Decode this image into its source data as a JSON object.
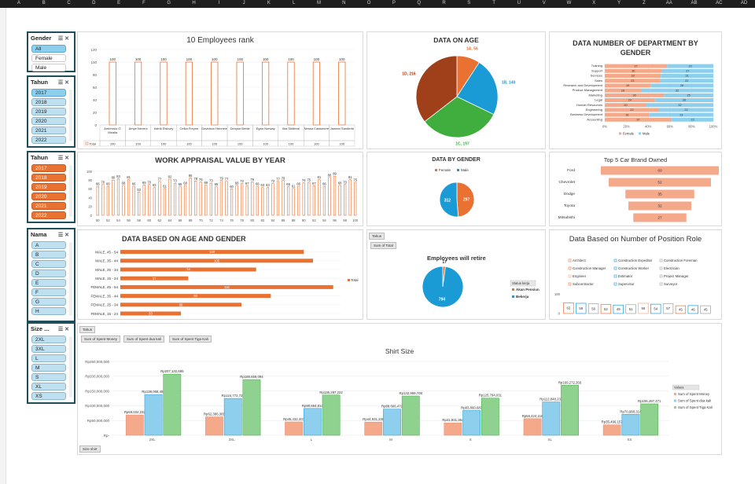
{
  "columns": [
    "A",
    "B",
    "C",
    "D",
    "E",
    "F",
    "G",
    "H",
    "I",
    "J",
    "K",
    "L",
    "M",
    "N",
    "O",
    "P",
    "Q",
    "R",
    "S",
    "T",
    "U",
    "V",
    "W",
    "X",
    "Y",
    "Z",
    "AA",
    "AB",
    "AC",
    "AD"
  ],
  "slicers": {
    "gender": {
      "title": "Gender",
      "items": [
        "All",
        "Female",
        "Male"
      ],
      "selected": [
        0
      ]
    },
    "tahun1": {
      "title": "Tahun",
      "items": [
        "2017",
        "2018",
        "2019",
        "2020",
        "2021",
        "2022"
      ],
      "selected": [
        0
      ]
    },
    "tahun2": {
      "title": "Tahun",
      "items": [
        "2017",
        "2018",
        "2019",
        "2020",
        "2021",
        "2022"
      ]
    },
    "nama": {
      "title": "Nama",
      "items": [
        "A",
        "B",
        "C",
        "D",
        "E",
        "F",
        "G",
        "H"
      ]
    },
    "size": {
      "title": "Size ...",
      "items": [
        "2XL",
        "3XL",
        "L",
        "M",
        "S",
        "XL",
        "XS"
      ]
    }
  },
  "colors": {
    "orange": "#e97132",
    "blue": "#1a9bd6",
    "green": "#3fae3f",
    "brown": "#a0401a",
    "salmon": "#f4a98a",
    "lightblue": "#8ecfee",
    "navy": "#1f4e5a"
  },
  "charts": {
    "rank": {
      "title": "10 Employees rank",
      "type": "bar",
      "categories": [
        "Ambrosio O' Mealla",
        "Amye Nevers",
        "Astrik Elsbury",
        "Celka Freyne",
        "Davidson Hennem",
        "Denyse Bertie",
        "Egan Norway",
        "Ilka Skittreal",
        "Nessa Cawsmere",
        "Janean Sanderbi"
      ],
      "values": [
        100,
        100,
        100,
        100,
        100,
        100,
        100,
        100,
        100,
        100
      ],
      "ylim": [
        0,
        120
      ],
      "yticks": [
        0,
        20,
        40,
        60,
        80,
        100,
        120
      ],
      "legend": "Total",
      "table_row_label": "Total"
    },
    "age": {
      "title": "DATA ON AGE",
      "type": "pie",
      "slices": [
        {
          "label": "1A, 56",
          "value": 56,
          "color": "#e97132"
        },
        {
          "label": "1B, 140",
          "value": 140,
          "color": "#1a9bd6"
        },
        {
          "label": "1C, 197",
          "value": 197,
          "color": "#3fae3f"
        },
        {
          "label": "1D, 216",
          "value": 216,
          "color": "#a0401a"
        }
      ]
    },
    "dept": {
      "title": "DATA NUMBER OF DEPARTMENT BY GENDER",
      "type": "bar",
      "categories": [
        "Training",
        "Support",
        "Services",
        "Sales",
        "Research and Development",
        "Product Management",
        "Marketing",
        "Legal",
        "Human Resources",
        "Engineering",
        "Business Development",
        "Accounting"
      ],
      "series": [
        {
          "name": "Female",
          "values": [
            27,
            30,
            33,
            23,
            19,
            16,
            30,
            24,
            20,
            22,
            16,
            37
          ]
        },
        {
          "name": "Male",
          "values": [
            20,
            27,
            31,
            22,
            26,
            32,
            25,
            28,
            32,
            22,
            23,
            23
          ]
        }
      ],
      "xticks": [
        "0%",
        "20%",
        "40%",
        "60%",
        "80%",
        "100%"
      ]
    },
    "appraisal": {
      "title": "WORK APPRAISAL VALUE BY YEAR",
      "type": "bar",
      "x": [
        50,
        51,
        52,
        53,
        54,
        55,
        56,
        57,
        58,
        59,
        60,
        61,
        62,
        63,
        64,
        65,
        66,
        67,
        68,
        69,
        70,
        71,
        72,
        73,
        74,
        75,
        76,
        77,
        78,
        79,
        80,
        81,
        82,
        83,
        84,
        85,
        86,
        87,
        88,
        89,
        90,
        91,
        92,
        93,
        94,
        95,
        96,
        97,
        98,
        99,
        100
      ],
      "values": [
        66,
        70,
        66,
        80,
        83,
        68,
        81,
        66,
        53,
        69,
        70,
        63,
        77,
        61,
        82,
        73,
        65,
        68,
        85,
        78,
        76,
        69,
        73,
        65,
        79,
        77,
        60,
        68,
        72,
        67,
        76,
        66,
        63,
        63,
        72,
        77,
        79,
        65,
        61,
        66,
        74,
        75,
        67,
        81,
        66,
        86,
        89,
        68,
        70,
        81,
        75
      ],
      "xticks": [
        50,
        52,
        54,
        56,
        58,
        60,
        62,
        64,
        66,
        68,
        70,
        72,
        74,
        76,
        78,
        80,
        82,
        84,
        86,
        88,
        90,
        92,
        94,
        96,
        98,
        100
      ],
      "yticks": [
        0,
        20,
        40,
        60,
        80,
        100
      ],
      "ylim": [
        0,
        100
      ]
    },
    "gender": {
      "title": "DATA BY GENDER",
      "type": "pie",
      "legend": [
        "Female",
        "Male"
      ],
      "slices": [
        {
          "label": "297",
          "value": 297,
          "color": "#e97132"
        },
        {
          "label": "312",
          "value": 312,
          "color": "#1a9bd6"
        }
      ]
    },
    "brand": {
      "title": "Top 5 Car Brand Owned",
      "type": "bar",
      "categories": [
        "Ford",
        "Chevrolet",
        "Dodge",
        "Toyota",
        "Mitsubishi"
      ],
      "values": [
        60,
        52,
        35,
        32,
        27
      ],
      "xlim": [
        0,
        60
      ]
    },
    "agegender": {
      "title": "DATA BASED ON AGE AND GENDER",
      "type": "bar",
      "categories": [
        "MALE, 45 - 54",
        "MALE, 35 - 44",
        "MALE, 25 - 34",
        "MALE, 15 - 24",
        "FEMALE, 45 - 54",
        "FEMALE, 35 - 44",
        "FEMALE, 25 - 34",
        "FEMALE, 15 - 24"
      ],
      "values": [
        100,
        105,
        74,
        37,
        116,
        82,
        66,
        33
      ],
      "xlim": [
        0,
        120
      ],
      "legend": "Total"
    },
    "retire": {
      "title": "Employees will retire",
      "type": "pie",
      "field_button": "Tahun",
      "value_button": "Sum of Total",
      "legend_title": "Status kerja",
      "legend": [
        "Akan Pensiun",
        "Bekerja"
      ],
      "slices": [
        {
          "label": "17",
          "value": 17,
          "color": "#e97132"
        },
        {
          "label": "794",
          "value": 794,
          "color": "#1a9bd6"
        }
      ]
    },
    "position": {
      "title": "Data Based on Number of Position Role",
      "type": "bar",
      "legend": [
        "Architect",
        "Construction Expeditor",
        "Construction Foreman",
        "Construction Manager",
        "Construction Worker",
        "Electrician",
        "Engineer",
        "Estimator",
        "Project Manager",
        "Subcontractor",
        "Supervisor",
        "Surveyor"
      ],
      "legend_colors": [
        "#e97132",
        "#1a9bd6",
        "#9e9e9e",
        "#e97132",
        "#1a9bd6",
        "#9e9e9e",
        "#f4a98a",
        "#1a9bd6",
        "#9e9e9e",
        "#e97132",
        "#1a9bd6",
        "#9e9e9e"
      ],
      "values": [
        62,
        59,
        56,
        52,
        49,
        51,
        59,
        54,
        57,
        45,
        46,
        45
      ],
      "yticks": [
        0,
        100
      ],
      "ylim": [
        0,
        100
      ]
    },
    "shirt": {
      "title": "Shirt Size",
      "type": "bar",
      "field_button": "Tahun",
      "value_buttons": [
        "Sum of Spent Money",
        "Sum of Spent dua kali",
        "Sum of Spent Tiga Kali"
      ],
      "axis_button": "Size shirt",
      "legend_title": "Values",
      "categories": [
        "2XL",
        "3XL",
        "L",
        "M",
        "S",
        "XL",
        "XS"
      ],
      "series": [
        {
          "name": "Sum of Spent Money",
          "color": "#f4a98a",
          "values": [
            69034232,
            62386365,
            45432407,
            44931238,
            41931364,
            56424116,
            35496157
          ],
          "labels": [
            "Rp69,034,232",
            "Rp62,386,365",
            "Rp45,432,407",
            "Rp44,931,238",
            "Rp41,931,364",
            "Rp56,424,116",
            "Rp35,496,157"
          ]
        },
        {
          "name": "Sum of Spent dua kali",
          "color": "#8ecfee",
          "values": [
            138068465,
            124772729,
            90864814,
            88666472,
            83860687,
            112848232,
            70988314
          ],
          "labels": [
            "Rp138,068,465",
            "Rp124,772,729",
            "Rp90,864,814",
            "Rp88,666,472",
            "Rp83,860,687",
            "Rp112,848,232",
            "Rp70,988,314"
          ]
        },
        {
          "name": "Sum of Spent Tiga Kali",
          "color": "#8fd18f",
          "values": [
            207132695,
            188659094,
            136297222,
            132999708,
            125794031,
            169272356,
            106497471
          ],
          "labels": [
            "Rp207,132,695",
            "Rp188,659,094",
            "Rp136,297,222",
            "Rp132,999,708",
            "Rp125,794,031",
            "Rp169,272,356",
            "Rp106,497,471"
          ]
        }
      ],
      "yticks": [
        "Rp-",
        "Rp50,000,000",
        "Rp100,000,000",
        "Rp150,000,000",
        "Rp200,000,000",
        "Rp250,000,000"
      ],
      "ylim": [
        0,
        250000000
      ]
    }
  }
}
